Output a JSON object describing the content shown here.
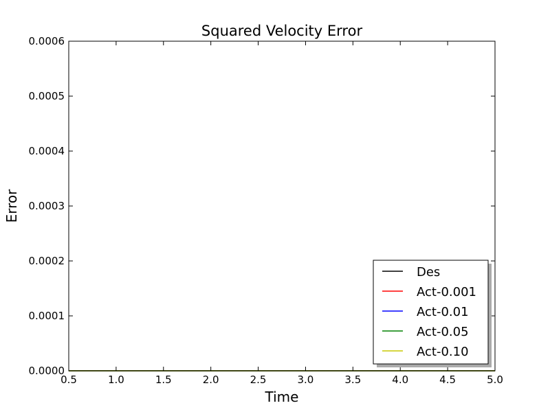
{
  "chart_data": {
    "type": "line",
    "title": "Squared Velocity Error",
    "xlabel": "Time",
    "ylabel": "Error",
    "xlim": [
      0.5,
      5.0
    ],
    "ylim": [
      0.0,
      0.0006
    ],
    "x_ticks": [
      "0.5",
      "1.0",
      "1.5",
      "2.0",
      "2.5",
      "3.0",
      "3.5",
      "4.0",
      "4.5",
      "5.0"
    ],
    "y_ticks": [
      "0.0000",
      "0.0001",
      "0.0002",
      "0.0003",
      "0.0004",
      "0.0005",
      "0.0006"
    ],
    "grid": false,
    "legend_position": "lower-right",
    "series": [
      {
        "name": "Des",
        "color": "#000000",
        "x": [
          0.5,
          5.0
        ],
        "y": [
          0.0,
          0.0
        ]
      },
      {
        "name": "Act-0.001",
        "color": "#ff0000",
        "x": [
          0.5,
          5.0
        ],
        "y": [
          0.0,
          0.0
        ]
      },
      {
        "name": "Act-0.01",
        "color": "#0000ff",
        "x": [
          0.5,
          5.0
        ],
        "y": [
          0.0,
          0.0
        ]
      },
      {
        "name": "Act-0.05",
        "color": "#008000",
        "x": [
          0.5,
          5.0
        ],
        "y": [
          0.0,
          0.0
        ]
      },
      {
        "name": "Act-0.10",
        "color": "#c8c800",
        "x": [
          0.5,
          5.0
        ],
        "y": [
          0.0,
          0.0
        ]
      }
    ]
  }
}
